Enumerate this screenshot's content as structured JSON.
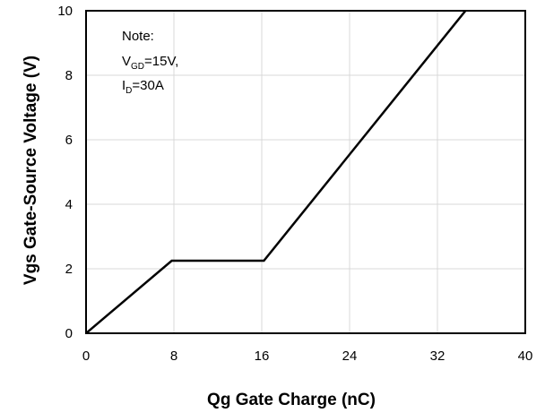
{
  "chart_data": {
    "type": "line",
    "xlabel": "Qg Gate Charge (nC)",
    "ylabel": "Vgs Gate-Source Voltage (V)",
    "xlim": [
      0,
      40
    ],
    "ylim": [
      0,
      10
    ],
    "xticks": [
      "0",
      "8",
      "16",
      "24",
      "32",
      "40"
    ],
    "yticks": [
      "0",
      "2",
      "4",
      "6",
      "8",
      "10"
    ],
    "grid": true,
    "series": [
      {
        "x": [
          0,
          7.8,
          16.2,
          35.5
        ],
        "y": [
          0,
          2.25,
          2.25,
          10.4
        ]
      }
    ],
    "note": {
      "title": "Note:",
      "line1_main": "V",
      "line1_sub": "GD",
      "line1_rest": "=15V,",
      "line2_main": "I",
      "line2_sub": "D",
      "line2_rest": "=30A"
    },
    "line_color": "#000000",
    "grid_color": "#d9d9d9"
  }
}
